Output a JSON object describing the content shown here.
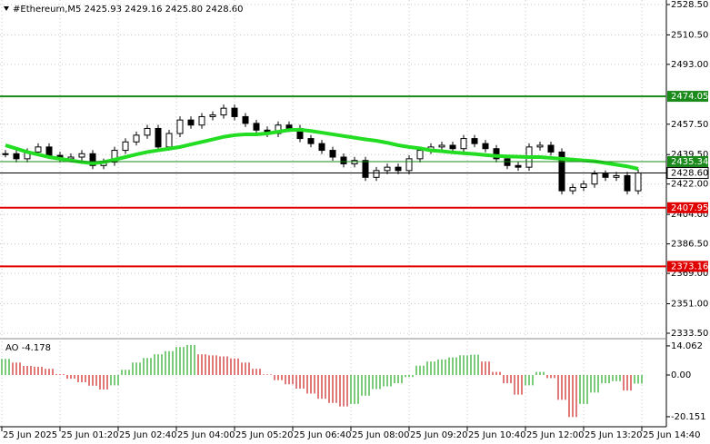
{
  "chart_data": {
    "type": "candlestick",
    "header": "#Ethereum,M5  2425.93 2429.16 2425.80 2428.60",
    "ylim": [
      2330.81,
      2531.19
    ],
    "yticks": [
      {
        "value": 2528.5,
        "label": "2528.50"
      },
      {
        "value": 2510.5,
        "label": "2510.50"
      },
      {
        "value": 2493,
        "label": "2493.00"
      },
      {
        "value": 2457.5,
        "label": "2457.50"
      },
      {
        "value": 2439.5,
        "label": "2439.50"
      },
      {
        "value": 2422,
        "label": "2422.00"
      },
      {
        "value": 2404,
        "label": "2404.00"
      },
      {
        "value": 2386.5,
        "label": "2386.50"
      },
      {
        "value": 2369,
        "label": "2369.00"
      },
      {
        "value": 2351,
        "label": "2351.00"
      },
      {
        "value": 2333.5,
        "label": "2333.50"
      }
    ],
    "xticks": [
      "25 Jun 2025",
      "25 Jun 01:20",
      "25 Jun 02:40",
      "25 Jun 04:00",
      "25 Jun 05:20",
      "25 Jun 06:40",
      "25 Jun 08:00",
      "25 Jun 09:20",
      "25 Jun 10:40",
      "25 Jun 12:00",
      "25 Jun 13:20",
      "25 Jun 14:40"
    ],
    "series": [
      {
        "name": "Close",
        "color": "#000000",
        "values": [
          2440,
          2437,
          2441,
          2444,
          2439,
          2437,
          2438,
          2440,
          2433,
          2435,
          2442,
          2447,
          2451,
          2455,
          2444,
          2452,
          2460,
          2457,
          2462,
          2463,
          2467,
          2462,
          2458,
          2454,
          2452,
          2457,
          2455,
          2449,
          2446,
          2442,
          2438,
          2434,
          2436,
          2426,
          2430,
          2432,
          2430,
          2437,
          2442,
          2444,
          2445,
          2443,
          2449,
          2446,
          2443,
          2437,
          2433,
          2432,
          2444,
          2445,
          2441,
          2418,
          2420,
          2422,
          2428,
          2426,
          2427,
          2418,
          2428.6
        ]
      },
      {
        "name": "MA",
        "color": "#22dd22",
        "values": [
          2445,
          2443,
          2441,
          2439.5,
          2438,
          2437,
          2436,
          2435,
          2434.3,
          2435,
          2436.5,
          2438,
          2439.6,
          2441,
          2442,
          2443,
          2444,
          2445.5,
          2447,
          2448.5,
          2450,
          2451,
          2451.5,
          2451.5,
          2452,
          2453,
          2454,
          2454.2,
          2453.5,
          2452.5,
          2451.5,
          2450.5,
          2449.5,
          2448.5,
          2447.7,
          2446.5,
          2445,
          2444,
          2443.2,
          2442,
          2441.5,
          2440.8,
          2440.3,
          2439.8,
          2439.2,
          2438.7,
          2438.4,
          2438.2,
          2438,
          2438,
          2437.5,
          2437,
          2436.5,
          2436,
          2435.5,
          2434.5,
          2433.5,
          2432.5,
          2431
        ]
      }
    ],
    "levels": [
      {
        "value": 2474.05,
        "color": "#1a8a1a"
      },
      {
        "value": 2435.34,
        "color": "#1a8a1a"
      },
      {
        "value": 2428.6,
        "label": "2428.60",
        "color": "#000000"
      },
      {
        "value": 2407.95,
        "color": "#e00000"
      },
      {
        "value": 2373.16,
        "color": "#e00000"
      }
    ],
    "ao": {
      "label": "AO -4.178",
      "ylim": [
        -25,
        17.1
      ],
      "yticks": [
        14.062,
        {
          "value": 0,
          "label": "0.00"
        },
        -20.151
      ],
      "up_color": "#22aa22",
      "down_color": "#cc2222",
      "values": [
        7.8,
        6,
        4.4,
        4,
        3,
        0.4,
        -1.8,
        -3.5,
        -5.2,
        -7,
        -5,
        2.5,
        6,
        8.2,
        10,
        11.5,
        13.5,
        14.5,
        10,
        9.5,
        9,
        8,
        6,
        3,
        0.3,
        -2.5,
        -4.5,
        -6.6,
        -9,
        -11.5,
        -13.5,
        -15.2,
        -14,
        -10,
        -6.8,
        -5.5,
        -4,
        -1,
        4.5,
        6.5,
        7.5,
        8.5,
        9.5,
        9.8,
        6.5,
        1.5,
        -4,
        -9.5,
        -5,
        1.5,
        -1.5,
        -12,
        -20.3,
        -14,
        -8.5,
        -4,
        -3,
        -7.5,
        -4.178
      ]
    }
  }
}
